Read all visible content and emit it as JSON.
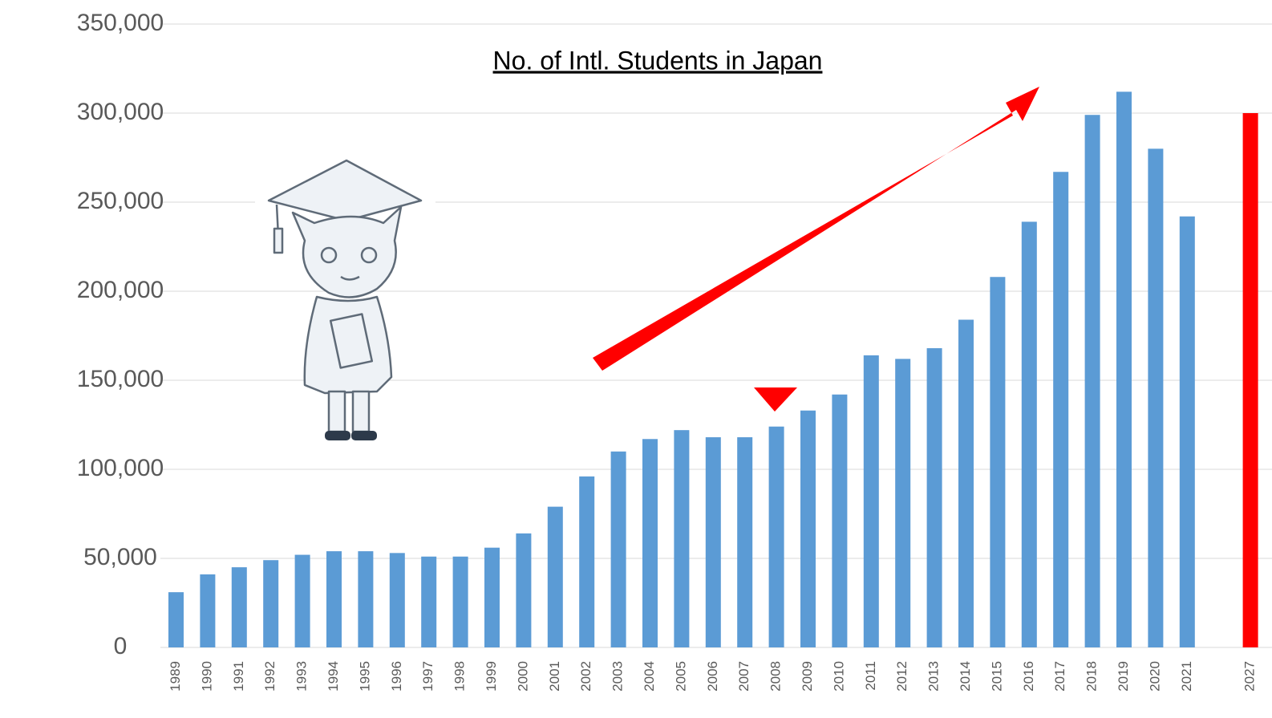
{
  "chart_data": {
    "type": "bar",
    "title": "No. of Intl. Students in Japan",
    "categories": [
      "1989",
      "1990",
      "1991",
      "1992",
      "1993",
      "1994",
      "1995",
      "1996",
      "1997",
      "1998",
      "1999",
      "2000",
      "2001",
      "2002",
      "2003",
      "2004",
      "2005",
      "2006",
      "2007",
      "2008",
      "2009",
      "2010",
      "2011",
      "2012",
      "2013",
      "2014",
      "2015",
      "2016",
      "2017",
      "2018",
      "2019",
      "2020",
      "2021",
      null,
      "2027"
    ],
    "values": [
      31000,
      41000,
      45000,
      49000,
      52000,
      54000,
      54000,
      53000,
      51000,
      51000,
      56000,
      64000,
      79000,
      96000,
      110000,
      117000,
      122000,
      118000,
      118000,
      124000,
      133000,
      142000,
      164000,
      162000,
      168000,
      184000,
      208000,
      239000,
      267000,
      299000,
      312000,
      280000,
      242000,
      null,
      300000
    ],
    "colors": [
      "#5b9bd5",
      "#5b9bd5",
      "#5b9bd5",
      "#5b9bd5",
      "#5b9bd5",
      "#5b9bd5",
      "#5b9bd5",
      "#5b9bd5",
      "#5b9bd5",
      "#5b9bd5",
      "#5b9bd5",
      "#5b9bd5",
      "#5b9bd5",
      "#5b9bd5",
      "#5b9bd5",
      "#5b9bd5",
      "#5b9bd5",
      "#5b9bd5",
      "#5b9bd5",
      "#5b9bd5",
      "#5b9bd5",
      "#5b9bd5",
      "#5b9bd5",
      "#5b9bd5",
      "#5b9bd5",
      "#5b9bd5",
      "#5b9bd5",
      "#5b9bd5",
      "#5b9bd5",
      "#5b9bd5",
      "#5b9bd5",
      "#5b9bd5",
      "#5b9bd5",
      "#5b9bd5",
      "#ff0000"
    ],
    "ylim": [
      0,
      350000
    ],
    "yticks": [
      0,
      {
        "value": 50000,
        "label": "50,000"
      },
      {
        "value": 100000,
        "label": "100,000"
      },
      {
        "value": 150000,
        "label": "150,000"
      },
      {
        "value": 200000,
        "label": "200,000"
      },
      {
        "value": 250000,
        "label": "250,000"
      },
      {
        "value": 300000,
        "label": "300,000"
      },
      {
        "value": 350000,
        "label": "350,000"
      }
    ],
    "grid": true
  }
}
